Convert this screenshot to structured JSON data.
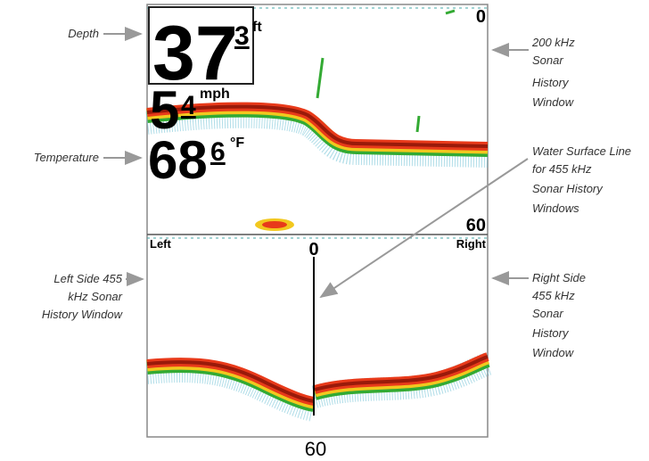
{
  "callouts": {
    "depth": "Depth",
    "temperature": "Temperature",
    "left_window": [
      "Left Side 455",
      "kHz Sonar",
      "History Window"
    ],
    "top_window": [
      "200 kHz",
      "Sonar",
      "History",
      "Window"
    ],
    "surface_line": [
      "Water Surface Line",
      "for 455 kHz",
      "Sonar History",
      "Windows"
    ],
    "right_window": [
      "Right Side",
      "455 kHz",
      "Sonar",
      "History",
      "Window"
    ]
  },
  "display": {
    "depth": {
      "whole": 37,
      "tenth": 3,
      "unit": "ft"
    },
    "speed": {
      "whole": 5,
      "tenth": 4,
      "unit": "mph"
    },
    "temperature": {
      "whole": 68,
      "tenth": 6,
      "unit": "°F"
    },
    "top_scale": {
      "top": 0,
      "bottom": 60
    },
    "bottom_window": {
      "left": "Left",
      "right": "Right",
      "top": 0,
      "bottom": 60
    }
  }
}
